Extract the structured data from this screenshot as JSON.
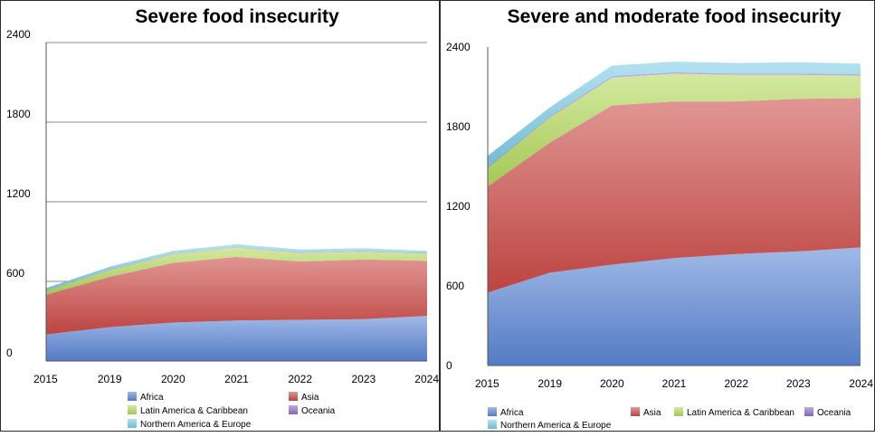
{
  "chart_data": [
    {
      "type": "area",
      "stacked": true,
      "title": "Severe food insecurity",
      "categories": [
        "2015",
        "2019",
        "2020",
        "2021",
        "2022",
        "2023",
        "2024"
      ],
      "ylim": [
        0,
        2400
      ],
      "yticks": [
        "0",
        "600",
        "1200",
        "1800",
        "2400"
      ],
      "grid": "horizontal",
      "legend_position": "bottom",
      "series": [
        {
          "name": "Africa",
          "color": "#5b86d6",
          "values": [
            200,
            255,
            290,
            305,
            310,
            315,
            340
          ]
        },
        {
          "name": "Asia",
          "color": "#cc4a47",
          "values": [
            300,
            380,
            450,
            480,
            440,
            450,
            415
          ]
        },
        {
          "name": "Latin America & Caribbean",
          "color": "#b3d95c",
          "values": [
            30,
            50,
            65,
            70,
            65,
            60,
            55
          ]
        },
        {
          "name": "Oceania",
          "color": "#8c6fc7",
          "values": [
            3,
            3,
            4,
            4,
            4,
            4,
            4
          ]
        },
        {
          "name": "Northern America & Europe",
          "color": "#7ccbe6",
          "values": [
            17,
            22,
            21,
            21,
            21,
            21,
            16
          ]
        }
      ]
    },
    {
      "type": "area",
      "stacked": true,
      "title": "Severe and moderate food insecurity",
      "categories": [
        "2015",
        "2019",
        "2020",
        "2021",
        "2022",
        "2023",
        "2024"
      ],
      "ylim": [
        0,
        2400
      ],
      "yticks": [
        "0",
        "600",
        "1200",
        "1800",
        "2400"
      ],
      "grid": "none",
      "legend_position": "bottom",
      "series": [
        {
          "name": "Africa",
          "color": "#5b86d6",
          "values": [
            550,
            700,
            760,
            810,
            840,
            860,
            890
          ]
        },
        {
          "name": "Asia",
          "color": "#cc4a47",
          "values": [
            800,
            980,
            1200,
            1180,
            1150,
            1150,
            1125
          ]
        },
        {
          "name": "Latin America & Caribbean",
          "color": "#b3d95c",
          "values": [
            140,
            190,
            210,
            210,
            200,
            180,
            170
          ]
        },
        {
          "name": "Oceania",
          "color": "#8c6fc7",
          "values": [
            5,
            5,
            10,
            10,
            10,
            10,
            10
          ]
        },
        {
          "name": "Northern America & Europe",
          "color": "#7ccbe6",
          "values": [
            85,
            70,
            80,
            80,
            80,
            85,
            80
          ]
        }
      ]
    }
  ]
}
